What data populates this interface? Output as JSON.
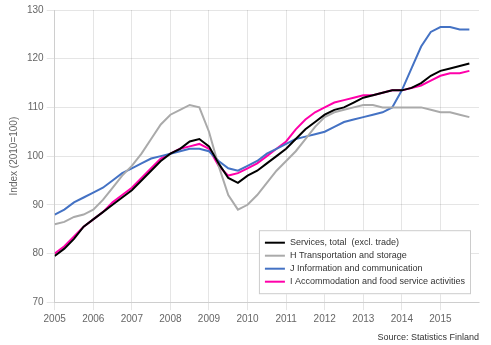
{
  "chart_data": {
    "type": "line",
    "title": "",
    "ylabel": "Index (2010=100)",
    "source": "Source: Statistics Finland",
    "xlim": [
      2005.0,
      2016.0
    ],
    "ylim": [
      70,
      130
    ],
    "xticks": [
      2005,
      2006,
      2007,
      2008,
      2009,
      2010,
      2011,
      2012,
      2013,
      2014,
      2015
    ],
    "yticks": [
      70,
      80,
      90,
      100,
      110,
      120,
      130
    ],
    "grid": true,
    "legend": "lower right",
    "x": [
      2005.0,
      2005.25,
      2005.5,
      2005.75,
      2006.0,
      2006.25,
      2006.5,
      2006.75,
      2007.0,
      2007.25,
      2007.5,
      2007.75,
      2008.0,
      2008.25,
      2008.5,
      2008.75,
      2009.0,
      2009.25,
      2009.5,
      2009.75,
      2010.0,
      2010.25,
      2010.5,
      2010.75,
      2011.0,
      2011.25,
      2011.5,
      2011.75,
      2012.0,
      2012.25,
      2012.5,
      2012.75,
      2013.0,
      2013.25,
      2013.5,
      2013.75,
      2014.0,
      2014.25,
      2014.5,
      2014.75,
      2015.0,
      2015.25,
      2015.5,
      2015.75
    ],
    "series": [
      {
        "name": "Services, total  (excl. trade)",
        "color": "#000000",
        "values": [
          79.5,
          81.0,
          83.0,
          85.5,
          87.0,
          88.5,
          90.0,
          91.5,
          93.0,
          95.0,
          97.0,
          99.0,
          100.5,
          101.5,
          103.0,
          103.5,
          102.0,
          98.5,
          95.5,
          94.5,
          96.0,
          97.0,
          98.5,
          100.0,
          101.5,
          103.5,
          105.5,
          107.0,
          108.5,
          109.5,
          110.0,
          111.0,
          112.0,
          112.5,
          113.0,
          113.5,
          113.5,
          114.0,
          115.0,
          116.5,
          117.5,
          118.0,
          118.5,
          119.0
        ]
      },
      {
        "name": "H Transportation and storage",
        "color": "#aaaaaa",
        "values": [
          86.0,
          86.5,
          87.5,
          88.0,
          89.0,
          91.0,
          93.5,
          96.0,
          98.0,
          100.5,
          103.5,
          106.5,
          108.5,
          109.5,
          110.5,
          110.0,
          105.0,
          98.0,
          92.0,
          89.0,
          90.0,
          92.0,
          94.5,
          97.0,
          99.0,
          101.0,
          103.5,
          106.0,
          108.0,
          109.0,
          109.5,
          110.0,
          110.5,
          110.5,
          110.0,
          110.0,
          110.0,
          110.0,
          110.0,
          109.5,
          109.0,
          109.0,
          108.5,
          108.0
        ]
      },
      {
        "name": "J Information and communication",
        "color": "#4472c4",
        "values": [
          88.0,
          89.0,
          90.5,
          91.5,
          92.5,
          93.5,
          95.0,
          96.5,
          97.5,
          98.5,
          99.5,
          100.0,
          100.5,
          101.0,
          101.5,
          101.5,
          101.0,
          99.0,
          97.5,
          97.0,
          98.0,
          99.0,
          100.5,
          101.5,
          102.5,
          103.5,
          104.0,
          104.5,
          105.0,
          106.0,
          107.0,
          107.5,
          108.0,
          108.5,
          109.0,
          110.0,
          113.5,
          118.0,
          122.5,
          125.5,
          126.5,
          126.5,
          126.0,
          126.0
        ]
      },
      {
        "name": "I Accommodation and food service activities",
        "color": "#ff00aa",
        "values": [
          80.0,
          81.5,
          83.5,
          85.5,
          87.0,
          88.5,
          90.5,
          92.0,
          93.5,
          95.5,
          97.5,
          99.5,
          100.5,
          101.5,
          102.0,
          102.5,
          101.5,
          98.0,
          96.0,
          96.5,
          97.5,
          98.5,
          100.0,
          101.5,
          103.0,
          105.5,
          107.5,
          109.0,
          110.0,
          111.0,
          111.5,
          112.0,
          112.5,
          112.5,
          113.0,
          113.5,
          113.5,
          114.0,
          114.5,
          115.5,
          116.5,
          117.0,
          117.0,
          117.5
        ]
      }
    ]
  }
}
